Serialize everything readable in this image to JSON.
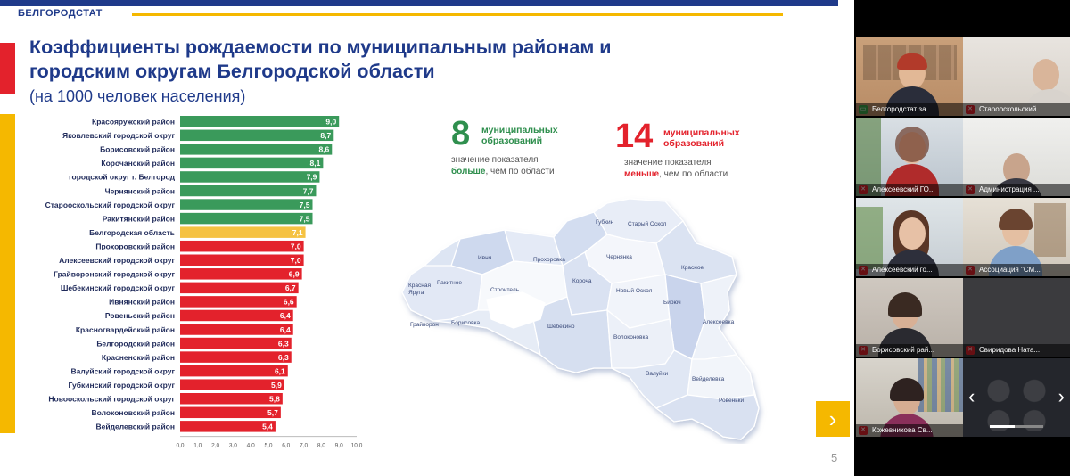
{
  "slide": {
    "brand": "БЕЛГОРОДСТАТ",
    "title": "Коэффициенты рождаемости по муниципальным районам и городским округам Белгородской области",
    "subtitle": "(на 1000 человек населения)",
    "page_number": "5",
    "next_arrow": "›",
    "stat_more": {
      "number": "8",
      "label": "муниципальных образований",
      "desc_pre": "значение показателя",
      "desc_bold": "больше",
      "desc_post": ", чем по области"
    },
    "stat_less": {
      "number": "14",
      "label": "муниципальных образований",
      "desc_pre": "значение показателя",
      "desc_bold": "меньше",
      "desc_post": ", чем по области"
    },
    "map_labels": [
      "Губкин",
      "Старый Оскол",
      "Ивня",
      "Прохоровка",
      "Чернянка",
      "Красное",
      "Ракитное",
      "Красная Яруга",
      "Строитель",
      "Короча",
      "Новый Оскол",
      "Белгород",
      "Бирюч",
      "Алексеевка",
      "Грайворон",
      "Борисовка",
      "Шебекино",
      "Волоконовка",
      "Валуйки",
      "Вейделевка",
      "Ровеньки"
    ]
  },
  "chart_data": {
    "type": "bar",
    "orientation": "horizontal",
    "categories": [
      "Красояружский район",
      "Яковлевский городской округ",
      "Борисовский район",
      "Корочанский район",
      "городской округ г. Белгород",
      "Чернянский район",
      "Старооскольский городской округ",
      "Ракитянский район",
      "Белгородская область",
      "Прохоровский район",
      "Алексеевский городской округ",
      "Грайворонский городской округ",
      "Шебекинский городской округ",
      "Ивнянский район",
      "Ровеньский район",
      "Красногвардейский район",
      "Белгородский район",
      "Красненский район",
      "Валуйский городской округ",
      "Губкинский городской округ",
      "Новооскольский городской округ",
      "Волоконовский район",
      "Вейделевский район"
    ],
    "values": [
      9.0,
      8.7,
      8.6,
      8.1,
      7.9,
      7.7,
      7.5,
      7.5,
      7.1,
      7.0,
      7.0,
      6.9,
      6.7,
      6.6,
      6.4,
      6.4,
      6.3,
      6.3,
      6.1,
      5.9,
      5.8,
      5.7,
      5.4
    ],
    "value_labels": [
      "9,0",
      "8,7",
      "8,6",
      "8,1",
      "7,9",
      "7,7",
      "7,5",
      "7,5",
      "7,1",
      "7,0",
      "7,0",
      "6,9",
      "6,7",
      "6,6",
      "6,4",
      "6,4",
      "6,3",
      "6,3",
      "6,1",
      "5,9",
      "5,8",
      "5,7",
      "5,4"
    ],
    "x_ticks": [
      "0,0",
      "1,0",
      "2,0",
      "3,0",
      "4,0",
      "5,0",
      "6,0",
      "7,0",
      "8,0",
      "9,0",
      "10,0"
    ],
    "xlim": [
      0,
      10
    ],
    "colors": {
      "above": "#3a9a5b",
      "region": "#f5c242",
      "below": "#e3222c"
    }
  },
  "participants": [
    {
      "name": "Белгородстат за..."
    },
    {
      "name": "Старооскольский..."
    },
    {
      "name": "Алексеевский ГО..."
    },
    {
      "name": "Администрация ..."
    },
    {
      "name": "Алексеевский го..."
    },
    {
      "name": "Ассоциация \"СМ..."
    },
    {
      "name": "Борисовский рай..."
    },
    {
      "name": "Свиридова Ната..."
    },
    {
      "name": "Кожевникова Св..."
    }
  ]
}
